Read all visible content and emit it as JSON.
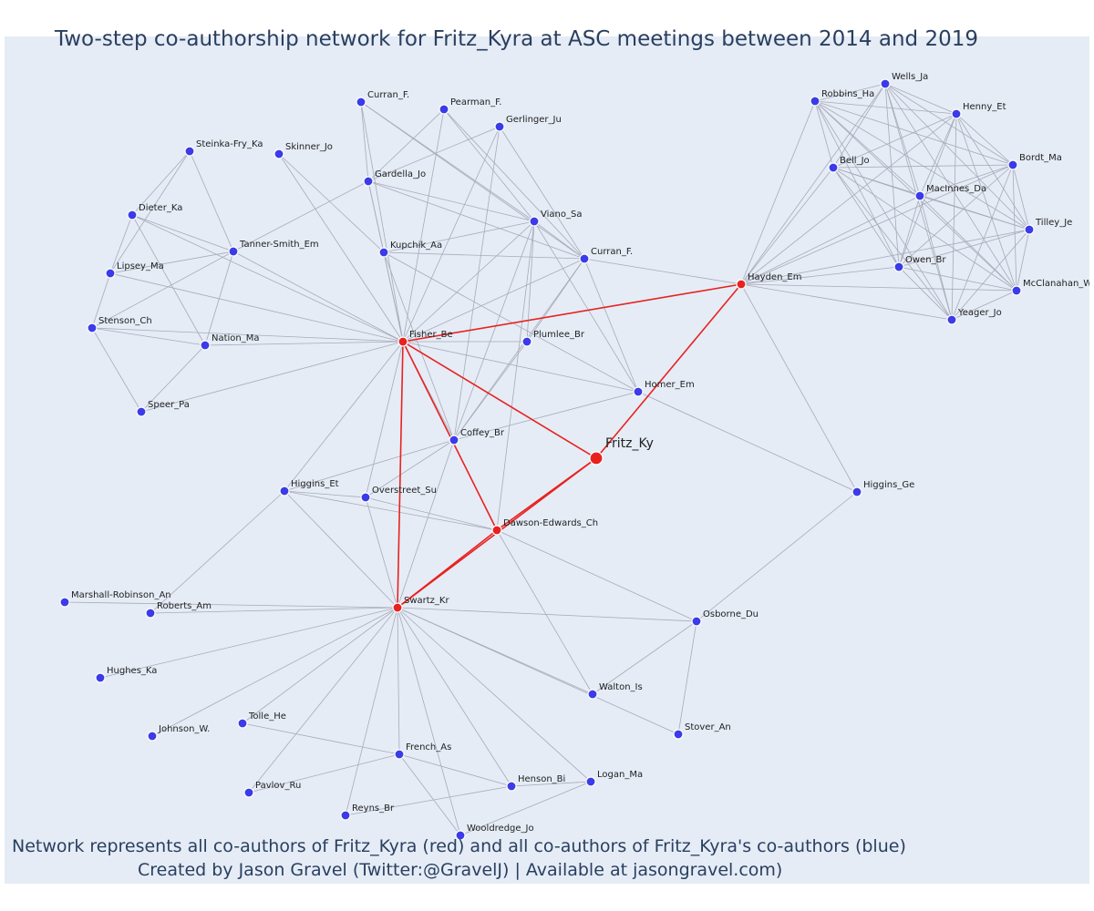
{
  "title": "Two-step co-authorship network for Fritz_Kyra at ASC meetings between 2014 and 2019",
  "caption_line1": "Network represents all co-authors of Fritz_Kyra (red) and all co-authors of Fritz_Kyra's co-authors (blue)",
  "caption_line2": "Created by Jason Gravel (Twitter:@GravelJ) | Available at jasongravel.com)",
  "colors": {
    "background": "#e5ecf6",
    "red_node": "#e8221f",
    "blue_node": "#3b3be8",
    "red_edge": "#e8221f",
    "gray_edge": "#a8aab8",
    "text": "#2a3f5f"
  },
  "nodes": [
    {
      "id": "Fritz_Ky",
      "label": "Fritz_Ky",
      "color": "red",
      "focal": true
    },
    {
      "id": "Fisher_Be",
      "label": "Fisher_Be",
      "color": "red"
    },
    {
      "id": "Hayden_Em",
      "label": "Hayden_Em",
      "color": "red"
    },
    {
      "id": "Dawson-Edwards_Ch",
      "label": "Dawson-Edwards_Ch",
      "color": "red"
    },
    {
      "id": "Swartz_Kr",
      "label": "Swartz_Kr",
      "color": "red"
    },
    {
      "id": "Coffey_Br",
      "label": "Coffey_Br",
      "color": "blue"
    },
    {
      "id": "Curran_F1",
      "label": "Curran_F.",
      "color": "blue"
    },
    {
      "id": "Pearman_F",
      "label": "Pearman_F.",
      "color": "blue"
    },
    {
      "id": "Gerlinger_Ju",
      "label": "Gerlinger_Ju",
      "color": "blue"
    },
    {
      "id": "Skinner_Jo",
      "label": "Skinner_Jo",
      "color": "blue"
    },
    {
      "id": "Steinka-Fry_Ka",
      "label": "Steinka-Fry_Ka",
      "color": "blue"
    },
    {
      "id": "Gardella_Jo",
      "label": "Gardella_Jo",
      "color": "blue"
    },
    {
      "id": "Viano_Sa",
      "label": "Viano_Sa",
      "color": "blue"
    },
    {
      "id": "Dieter_Ka",
      "label": "Dieter_Ka",
      "color": "blue"
    },
    {
      "id": "Tanner-Smith_Em",
      "label": "Tanner-Smith_Em",
      "color": "blue"
    },
    {
      "id": "Kupchik_Aa",
      "label": "Kupchik_Aa",
      "color": "blue"
    },
    {
      "id": "Curran_F2",
      "label": "Curran_F.",
      "color": "blue"
    },
    {
      "id": "Lipsey_Ma",
      "label": "Lipsey_Ma",
      "color": "blue"
    },
    {
      "id": "Stenson_Ch",
      "label": "Stenson_Ch",
      "color": "blue"
    },
    {
      "id": "Nation_Ma",
      "label": "Nation_Ma",
      "color": "blue"
    },
    {
      "id": "Plumlee_Br",
      "label": "Plumlee_Br",
      "color": "blue"
    },
    {
      "id": "Speer_Pa",
      "label": "Speer_Pa",
      "color": "blue"
    },
    {
      "id": "Homer_Em",
      "label": "Homer_Em",
      "color": "blue"
    },
    {
      "id": "Higgins_Et",
      "label": "Higgins_Et",
      "color": "blue"
    },
    {
      "id": "Overstreet_Su",
      "label": "Overstreet_Su",
      "color": "blue"
    },
    {
      "id": "Higgins_Ge",
      "label": "Higgins_Ge",
      "color": "blue"
    },
    {
      "id": "Marshall-Robinson_An",
      "label": "Marshall-Robinson_An",
      "color": "blue"
    },
    {
      "id": "Roberts_Am",
      "label": "Roberts_Am",
      "color": "blue"
    },
    {
      "id": "Osborne_Du",
      "label": "Osborne_Du",
      "color": "blue"
    },
    {
      "id": "Hughes_Ka",
      "label": "Hughes_Ka",
      "color": "blue"
    },
    {
      "id": "Walton_Is",
      "label": "Walton_Is",
      "color": "blue"
    },
    {
      "id": "Tolle_He",
      "label": "Tolle_He",
      "color": "blue"
    },
    {
      "id": "Johnson_W",
      "label": "Johnson_W.",
      "color": "blue"
    },
    {
      "id": "Stover_An",
      "label": "Stover_An",
      "color": "blue"
    },
    {
      "id": "French_As",
      "label": "French_As",
      "color": "blue"
    },
    {
      "id": "Henson_Bi",
      "label": "Henson_Bi",
      "color": "blue"
    },
    {
      "id": "Logan_Ma",
      "label": "Logan_Ma",
      "color": "blue"
    },
    {
      "id": "Pavlov_Ru",
      "label": "Pavlov_Ru",
      "color": "blue"
    },
    {
      "id": "Reyns_Br",
      "label": "Reyns_Br",
      "color": "blue"
    },
    {
      "id": "Wooldredge_Jo",
      "label": "Wooldredge_Jo",
      "color": "blue"
    },
    {
      "id": "Wells_Ja",
      "label": "Wells_Ja",
      "color": "blue"
    },
    {
      "id": "Robbins_Ha",
      "label": "Robbins_Ha",
      "color": "blue"
    },
    {
      "id": "Henny_Et",
      "label": "Henny_Et",
      "color": "blue"
    },
    {
      "id": "Bordt_Ma",
      "label": "Bordt_Ma",
      "color": "blue"
    },
    {
      "id": "Bell_Jo",
      "label": "Bell_Jo",
      "color": "blue"
    },
    {
      "id": "MacInnes_Da",
      "label": "MacInnes_Da",
      "color": "blue"
    },
    {
      "id": "Tilley_Je",
      "label": "Tilley_Je",
      "color": "blue"
    },
    {
      "id": "Owen_Br",
      "label": "Owen_Br",
      "color": "blue"
    },
    {
      "id": "McClanahan_W",
      "label": "McClanahan_W",
      "color": "blue"
    },
    {
      "id": "Yeager_Jo",
      "label": "Yeager_Jo",
      "color": "blue"
    }
  ],
  "edges": [
    [
      "Fritz_Ky",
      "Fisher_Be"
    ],
    [
      "Fritz_Ky",
      "Hayden_Em"
    ],
    [
      "Fritz_Ky",
      "Dawson-Edwards_Ch"
    ],
    [
      "Fritz_Ky",
      "Swartz_Kr"
    ],
    [
      "Fisher_Be",
      "Hayden_Em"
    ],
    [
      "Fisher_Be",
      "Swartz_Kr"
    ],
    [
      "Fisher_Be",
      "Dawson-Edwards_Ch"
    ],
    [
      "Dawson-Edwards_Ch",
      "Swartz_Kr"
    ],
    [
      "Fisher_Be",
      "Curran_F1"
    ],
    [
      "Fisher_Be",
      "Pearman_F"
    ],
    [
      "Fisher_Be",
      "Gerlinger_Ju"
    ],
    [
      "Fisher_Be",
      "Skinner_Jo"
    ],
    [
      "Fisher_Be",
      "Gardella_Jo"
    ],
    [
      "Fisher_Be",
      "Viano_Sa"
    ],
    [
      "Fisher_Be",
      "Tanner-Smith_Em"
    ],
    [
      "Fisher_Be",
      "Kupchik_Aa"
    ],
    [
      "Fisher_Be",
      "Curran_F2"
    ],
    [
      "Fisher_Be",
      "Lipsey_Ma"
    ],
    [
      "Fisher_Be",
      "Dieter_Ka"
    ],
    [
      "Fisher_Be",
      "Stenson_Ch"
    ],
    [
      "Fisher_Be",
      "Nation_Ma"
    ],
    [
      "Fisher_Be",
      "Speer_Pa"
    ],
    [
      "Fisher_Be",
      "Plumlee_Br"
    ],
    [
      "Fisher_Be",
      "Homer_Em"
    ],
    [
      "Fisher_Be",
      "Coffey_Br"
    ],
    [
      "Fisher_Be",
      "Higgins_Et"
    ],
    [
      "Fisher_Be",
      "Overstreet_Su"
    ],
    [
      "Curran_F1",
      "Gardella_Jo"
    ],
    [
      "Curran_F1",
      "Viano_Sa"
    ],
    [
      "Curran_F1",
      "Curran_F2"
    ],
    [
      "Pearman_F",
      "Gardella_Jo"
    ],
    [
      "Pearman_F",
      "Viano_Sa"
    ],
    [
      "Pearman_F",
      "Curran_F2"
    ],
    [
      "Gerlinger_Ju",
      "Gardella_Jo"
    ],
    [
      "Gerlinger_Ju",
      "Curran_F2"
    ],
    [
      "Gerlinger_Ju",
      "Coffey_Br"
    ],
    [
      "Skinner_Jo",
      "Kupchik_Aa"
    ],
    [
      "Gardella_Jo",
      "Viano_Sa"
    ],
    [
      "Gardella_Jo",
      "Curran_F2"
    ],
    [
      "Gardella_Jo",
      "Kupchik_Aa"
    ],
    [
      "Gardella_Jo",
      "Tanner-Smith_Em"
    ],
    [
      "Viano_Sa",
      "Kupchik_Aa"
    ],
    [
      "Viano_Sa",
      "Curran_F2"
    ],
    [
      "Viano_Sa",
      "Plumlee_Br"
    ],
    [
      "Viano_Sa",
      "Coffey_Br"
    ],
    [
      "Viano_Sa",
      "Homer_Em"
    ],
    [
      "Viano_Sa",
      "Dawson-Edwards_Ch"
    ],
    [
      "Kupchik_Aa",
      "Curran_F2"
    ],
    [
      "Kupchik_Aa",
      "Homer_Em"
    ],
    [
      "Kupchik_Aa",
      "Coffey_Br"
    ],
    [
      "Curran_F2",
      "Hayden_Em"
    ],
    [
      "Curran_F2",
      "Homer_Em"
    ],
    [
      "Curran_F2",
      "Coffey_Br"
    ],
    [
      "Curran_F2",
      "Plumlee_Br"
    ],
    [
      "Plumlee_Br",
      "Coffey_Br"
    ],
    [
      "Steinka-Fry_Ka",
      "Dieter_Ka"
    ],
    [
      "Steinka-Fry_Ka",
      "Tanner-Smith_Em"
    ],
    [
      "Steinka-Fry_Ka",
      "Lipsey_Ma"
    ],
    [
      "Dieter_Ka",
      "Tanner-Smith_Em"
    ],
    [
      "Dieter_Ka",
      "Lipsey_Ma"
    ],
    [
      "Dieter_Ka",
      "Nation_Ma"
    ],
    [
      "Tanner-Smith_Em",
      "Lipsey_Ma"
    ],
    [
      "Tanner-Smith_Em",
      "Stenson_Ch"
    ],
    [
      "Tanner-Smith_Em",
      "Nation_Ma"
    ],
    [
      "Lipsey_Ma",
      "Stenson_Ch"
    ],
    [
      "Stenson_Ch",
      "Nation_Ma"
    ],
    [
      "Stenson_Ch",
      "Speer_Pa"
    ],
    [
      "Nation_Ma",
      "Speer_Pa"
    ],
    [
      "Homer_Em",
      "Coffey_Br"
    ],
    [
      "Homer_Em",
      "Higgins_Ge"
    ],
    [
      "Coffey_Br",
      "Overstreet_Su"
    ],
    [
      "Coffey_Br",
      "Higgins_Et"
    ],
    [
      "Coffey_Br",
      "Swartz_Kr"
    ],
    [
      "Higgins_Et",
      "Overstreet_Su"
    ],
    [
      "Higgins_Et",
      "Dawson-Edwards_Ch"
    ],
    [
      "Higgins_Et",
      "Swartz_Kr"
    ],
    [
      "Higgins_Et",
      "Roberts_Am"
    ],
    [
      "Overstreet_Su",
      "Dawson-Edwards_Ch"
    ],
    [
      "Overstreet_Su",
      "Swartz_Kr"
    ],
    [
      "Dawson-Edwards_Ch",
      "Walton_Is"
    ],
    [
      "Dawson-Edwards_Ch",
      "Osborne_Du"
    ],
    [
      "Hayden_Em",
      "Higgins_Ge"
    ],
    [
      "Higgins_Ge",
      "Osborne_Du"
    ],
    [
      "Swartz_Kr",
      "Marshall-Robinson_An"
    ],
    [
      "Swartz_Kr",
      "Roberts_Am"
    ],
    [
      "Swartz_Kr",
      "Hughes_Ka"
    ],
    [
      "Swartz_Kr",
      "Johnson_W"
    ],
    [
      "Swartz_Kr",
      "Tolle_He"
    ],
    [
      "Swartz_Kr",
      "French_As"
    ],
    [
      "Swartz_Kr",
      "Pavlov_Ru"
    ],
    [
      "Swartz_Kr",
      "Reyns_Br"
    ],
    [
      "Swartz_Kr",
      "Wooldredge_Jo"
    ],
    [
      "Swartz_Kr",
      "Henson_Bi"
    ],
    [
      "Swartz_Kr",
      "Logan_Ma"
    ],
    [
      "Swartz_Kr",
      "Walton_Is"
    ],
    [
      "Swartz_Kr",
      "Osborne_Du"
    ],
    [
      "Swartz_Kr",
      "Stover_An"
    ],
    [
      "Osborne_Du",
      "Walton_Is"
    ],
    [
      "Osborne_Du",
      "Stover_An"
    ],
    [
      "Tolle_He",
      "French_As"
    ],
    [
      "French_As",
      "Pavlov_Ru"
    ],
    [
      "French_As",
      "Henson_Bi"
    ],
    [
      "French_As",
      "Wooldredge_Jo"
    ],
    [
      "Reyns_Br",
      "Henson_Bi"
    ],
    [
      "Wooldredge_Jo",
      "Logan_Ma"
    ],
    [
      "Henson_Bi",
      "Logan_Ma"
    ],
    [
      "Hayden_Em",
      "Robbins_Ha"
    ],
    [
      "Hayden_Em",
      "Wells_Ja"
    ],
    [
      "Hayden_Em",
      "Henny_Et"
    ],
    [
      "Hayden_Em",
      "Bordt_Ma"
    ],
    [
      "Hayden_Em",
      "Bell_Jo"
    ],
    [
      "Hayden_Em",
      "MacInnes_Da"
    ],
    [
      "Hayden_Em",
      "Tilley_Je"
    ],
    [
      "Hayden_Em",
      "Owen_Br"
    ],
    [
      "Hayden_Em",
      "McClanahan_W"
    ],
    [
      "Hayden_Em",
      "Yeager_Jo"
    ],
    [
      "Robbins_Ha",
      "Wells_Ja"
    ],
    [
      "Robbins_Ha",
      "Henny_Et"
    ],
    [
      "Robbins_Ha",
      "Bordt_Ma"
    ],
    [
      "Robbins_Ha",
      "Bell_Jo"
    ],
    [
      "Robbins_Ha",
      "MacInnes_Da"
    ],
    [
      "Robbins_Ha",
      "Tilley_Je"
    ],
    [
      "Robbins_Ha",
      "Owen_Br"
    ],
    [
      "Robbins_Ha",
      "McClanahan_W"
    ],
    [
      "Robbins_Ha",
      "Yeager_Jo"
    ],
    [
      "Wells_Ja",
      "Henny_Et"
    ],
    [
      "Wells_Ja",
      "Bordt_Ma"
    ],
    [
      "Wells_Ja",
      "Bell_Jo"
    ],
    [
      "Wells_Ja",
      "MacInnes_Da"
    ],
    [
      "Wells_Ja",
      "Tilley_Je"
    ],
    [
      "Wells_Ja",
      "Owen_Br"
    ],
    [
      "Wells_Ja",
      "McClanahan_W"
    ],
    [
      "Wells_Ja",
      "Yeager_Jo"
    ],
    [
      "Henny_Et",
      "Bordt_Ma"
    ],
    [
      "Henny_Et",
      "Bell_Jo"
    ],
    [
      "Henny_Et",
      "MacInnes_Da"
    ],
    [
      "Henny_Et",
      "Tilley_Je"
    ],
    [
      "Henny_Et",
      "Owen_Br"
    ],
    [
      "Henny_Et",
      "McClanahan_W"
    ],
    [
      "Henny_Et",
      "Yeager_Jo"
    ],
    [
      "Bordt_Ma",
      "Bell_Jo"
    ],
    [
      "Bordt_Ma",
      "MacInnes_Da"
    ],
    [
      "Bordt_Ma",
      "Tilley_Je"
    ],
    [
      "Bordt_Ma",
      "Owen_Br"
    ],
    [
      "Bordt_Ma",
      "McClanahan_W"
    ],
    [
      "Bordt_Ma",
      "Yeager_Jo"
    ],
    [
      "Bell_Jo",
      "MacInnes_Da"
    ],
    [
      "Bell_Jo",
      "Tilley_Je"
    ],
    [
      "Bell_Jo",
      "Owen_Br"
    ],
    [
      "Bell_Jo",
      "McClanahan_W"
    ],
    [
      "Bell_Jo",
      "Yeager_Jo"
    ],
    [
      "MacInnes_Da",
      "Tilley_Je"
    ],
    [
      "MacInnes_Da",
      "Owen_Br"
    ],
    [
      "MacInnes_Da",
      "McClanahan_W"
    ],
    [
      "MacInnes_Da",
      "Yeager_Jo"
    ],
    [
      "Tilley_Je",
      "Owen_Br"
    ],
    [
      "Tilley_Je",
      "McClanahan_W"
    ],
    [
      "Tilley_Je",
      "Yeager_Jo"
    ],
    [
      "Owen_Br",
      "McClanahan_W"
    ],
    [
      "Owen_Br",
      "Yeager_Jo"
    ],
    [
      "McClanahan_W",
      "Yeager_Jo"
    ]
  ]
}
